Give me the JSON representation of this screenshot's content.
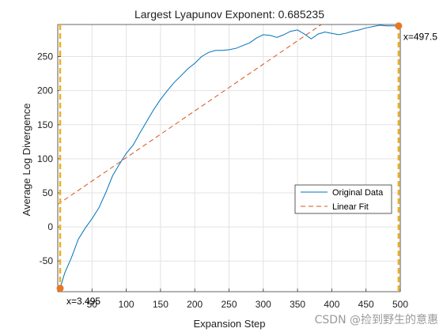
{
  "chart_data": {
    "type": "line",
    "title": "Largest Lyapunov Exponent: 0.685235",
    "xlabel": "Expansion Step",
    "ylabel": "Average Log Divergence",
    "xlim": [
      0,
      500
    ],
    "ylim": [
      -95,
      297
    ],
    "xticks": [
      50,
      100,
      150,
      200,
      250,
      300,
      350,
      400,
      450,
      500
    ],
    "yticks": [
      -50,
      0,
      50,
      100,
      150,
      200,
      250
    ],
    "grid": true,
    "legend_position": "right",
    "series": [
      {
        "name": "Original Data",
        "style": "solid",
        "color": "#0072BD",
        "x": [
          3.495,
          10,
          20,
          30,
          40,
          50,
          60,
          70,
          80,
          90,
          100,
          110,
          120,
          130,
          140,
          150,
          160,
          170,
          180,
          190,
          200,
          210,
          220,
          230,
          240,
          250,
          260,
          270,
          280,
          290,
          300,
          310,
          320,
          330,
          340,
          350,
          360,
          370,
          380,
          390,
          400,
          410,
          420,
          430,
          440,
          450,
          460,
          470,
          480,
          490,
          497.5
        ],
        "y": [
          -90,
          -68,
          -45,
          -18,
          -2,
          12,
          28,
          50,
          75,
          92,
          108,
          120,
          138,
          155,
          172,
          187,
          200,
          212,
          222,
          232,
          240,
          250,
          256,
          259,
          259,
          260,
          262,
          266,
          270,
          277,
          282,
          281,
          278,
          282,
          287,
          289,
          283,
          276,
          283,
          286,
          284,
          282,
          284,
          287,
          289,
          292,
          294,
          296,
          295,
          295,
          295
        ]
      },
      {
        "name": "Linear Fit",
        "style": "dashed",
        "color": "#D95319",
        "x": [
          0,
          500
        ],
        "y": [
          33,
          376
        ]
      }
    ],
    "markers": [
      {
        "x": 3.495,
        "y": -90,
        "label": "x=3.495"
      },
      {
        "x": 497.5,
        "y": 295,
        "label": "x=497.5"
      }
    ],
    "marker_color": "#EDB120",
    "marker_fill": "#E87722"
  },
  "watermark": "CSDN @捡到野生的意惠"
}
